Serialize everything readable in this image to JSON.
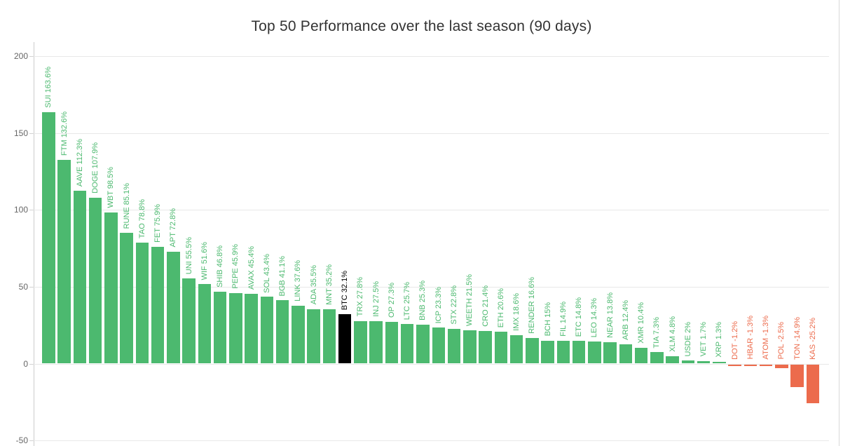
{
  "chart_data": {
    "type": "bar",
    "title": "Top 50 Performance over the last season (90 days)",
    "xlabel": "",
    "ylabel": "",
    "ylim": [
      -50,
      200
    ],
    "yticks": [
      200,
      150,
      100,
      50,
      0,
      -50
    ],
    "grid": true,
    "legend": "none",
    "highlight_symbol": "BTC",
    "colors": {
      "positive": "#4CB96F",
      "negative": "#EC6B4C",
      "highlight": "#000000",
      "title": "#333333",
      "axis_label": "#666666",
      "gridline": "#e8e8e8",
      "axis_line": "#cccccc"
    },
    "series_name": "Performance %",
    "points": [
      {
        "symbol": "SUI",
        "value": 163.6,
        "label": "SUI 163.6%"
      },
      {
        "symbol": "FTM",
        "value": 132.6,
        "label": "FTM 132.6%"
      },
      {
        "symbol": "AAVE",
        "value": 112.3,
        "label": "AAVE 112.3%"
      },
      {
        "symbol": "DOGE",
        "value": 107.9,
        "label": "DOGE 107.9%"
      },
      {
        "symbol": "WBT",
        "value": 98.5,
        "label": "WBT 98.5%"
      },
      {
        "symbol": "RUNE",
        "value": 85.1,
        "label": "RUNE 85.1%"
      },
      {
        "symbol": "TAO",
        "value": 78.8,
        "label": "TAO 78.8%"
      },
      {
        "symbol": "FET",
        "value": 75.9,
        "label": "FET 75.9%"
      },
      {
        "symbol": "APT",
        "value": 72.8,
        "label": "APT 72.8%"
      },
      {
        "symbol": "UNI",
        "value": 55.5,
        "label": "UNI 55.5%"
      },
      {
        "symbol": "WIF",
        "value": 51.6,
        "label": "WIF 51.6%"
      },
      {
        "symbol": "SHIB",
        "value": 46.8,
        "label": "SHIB 46.8%"
      },
      {
        "symbol": "PEPE",
        "value": 45.9,
        "label": "PEPE 45.9%"
      },
      {
        "symbol": "AVAX",
        "value": 45.4,
        "label": "AVAX 45.4%"
      },
      {
        "symbol": "SOL",
        "value": 43.4,
        "label": "SOL 43.4%"
      },
      {
        "symbol": "BGB",
        "value": 41.1,
        "label": "BGB 41.1%"
      },
      {
        "symbol": "LINK",
        "value": 37.6,
        "label": "LINK 37.6%"
      },
      {
        "symbol": "ADA",
        "value": 35.5,
        "label": "ADA 35.5%"
      },
      {
        "symbol": "MNT",
        "value": 35.2,
        "label": "MNT 35.2%"
      },
      {
        "symbol": "BTC",
        "value": 32.1,
        "label": "BTC 32.1%",
        "highlight": true
      },
      {
        "symbol": "TRX",
        "value": 27.8,
        "label": "TRX 27.8%"
      },
      {
        "symbol": "INJ",
        "value": 27.5,
        "label": "INJ 27.5%"
      },
      {
        "symbol": "OP",
        "value": 27.3,
        "label": "OP 27.3%"
      },
      {
        "symbol": "LTC",
        "value": 25.7,
        "label": "LTC 25.7%"
      },
      {
        "symbol": "BNB",
        "value": 25.3,
        "label": "BNB 25.3%"
      },
      {
        "symbol": "ICP",
        "value": 23.3,
        "label": "ICP 23.3%"
      },
      {
        "symbol": "STX",
        "value": 22.8,
        "label": "STX 22.8%"
      },
      {
        "symbol": "WEETH",
        "value": 21.5,
        "label": "WEETH 21.5%"
      },
      {
        "symbol": "CRO",
        "value": 21.4,
        "label": "CRO 21.4%"
      },
      {
        "symbol": "ETH",
        "value": 20.6,
        "label": "ETH 20.6%"
      },
      {
        "symbol": "IMX",
        "value": 18.6,
        "label": "IMX 18.6%"
      },
      {
        "symbol": "RENDER",
        "value": 16.6,
        "label": "RENDER 16.6%"
      },
      {
        "symbol": "BCH",
        "value": 15,
        "label": "BCH 15%"
      },
      {
        "symbol": "FIL",
        "value": 14.9,
        "label": "FIL 14.9%"
      },
      {
        "symbol": "ETC",
        "value": 14.8,
        "label": "ETC 14.8%"
      },
      {
        "symbol": "LEO",
        "value": 14.3,
        "label": "LEO 14.3%"
      },
      {
        "symbol": "NEAR",
        "value": 13.8,
        "label": "NEAR 13.8%"
      },
      {
        "symbol": "ARB",
        "value": 12.4,
        "label": "ARB 12.4%"
      },
      {
        "symbol": "XMR",
        "value": 10.4,
        "label": "XMR 10.4%"
      },
      {
        "symbol": "TIA",
        "value": 7.3,
        "label": "TIA 7.3%"
      },
      {
        "symbol": "XLM",
        "value": 4.8,
        "label": "XLM 4.8%"
      },
      {
        "symbol": "USDE",
        "value": 2,
        "label": "USDE 2%"
      },
      {
        "symbol": "VET",
        "value": 1.7,
        "label": "VET 1.7%"
      },
      {
        "symbol": "XRP",
        "value": 1.3,
        "label": "XRP 1.3%"
      },
      {
        "symbol": "DOT",
        "value": -1.2,
        "label": "DOT -1.2%"
      },
      {
        "symbol": "HBAR",
        "value": -1.3,
        "label": "HBAR -1.3%"
      },
      {
        "symbol": "ATOM",
        "value": -1.3,
        "label": "ATOM -1.3%"
      },
      {
        "symbol": "POL",
        "value": -2.5,
        "label": "POL -2.5%"
      },
      {
        "symbol": "TON",
        "value": -14.9,
        "label": "TON -14.9%"
      },
      {
        "symbol": "KAS",
        "value": -25.2,
        "label": "KAS -25.2%"
      }
    ]
  }
}
